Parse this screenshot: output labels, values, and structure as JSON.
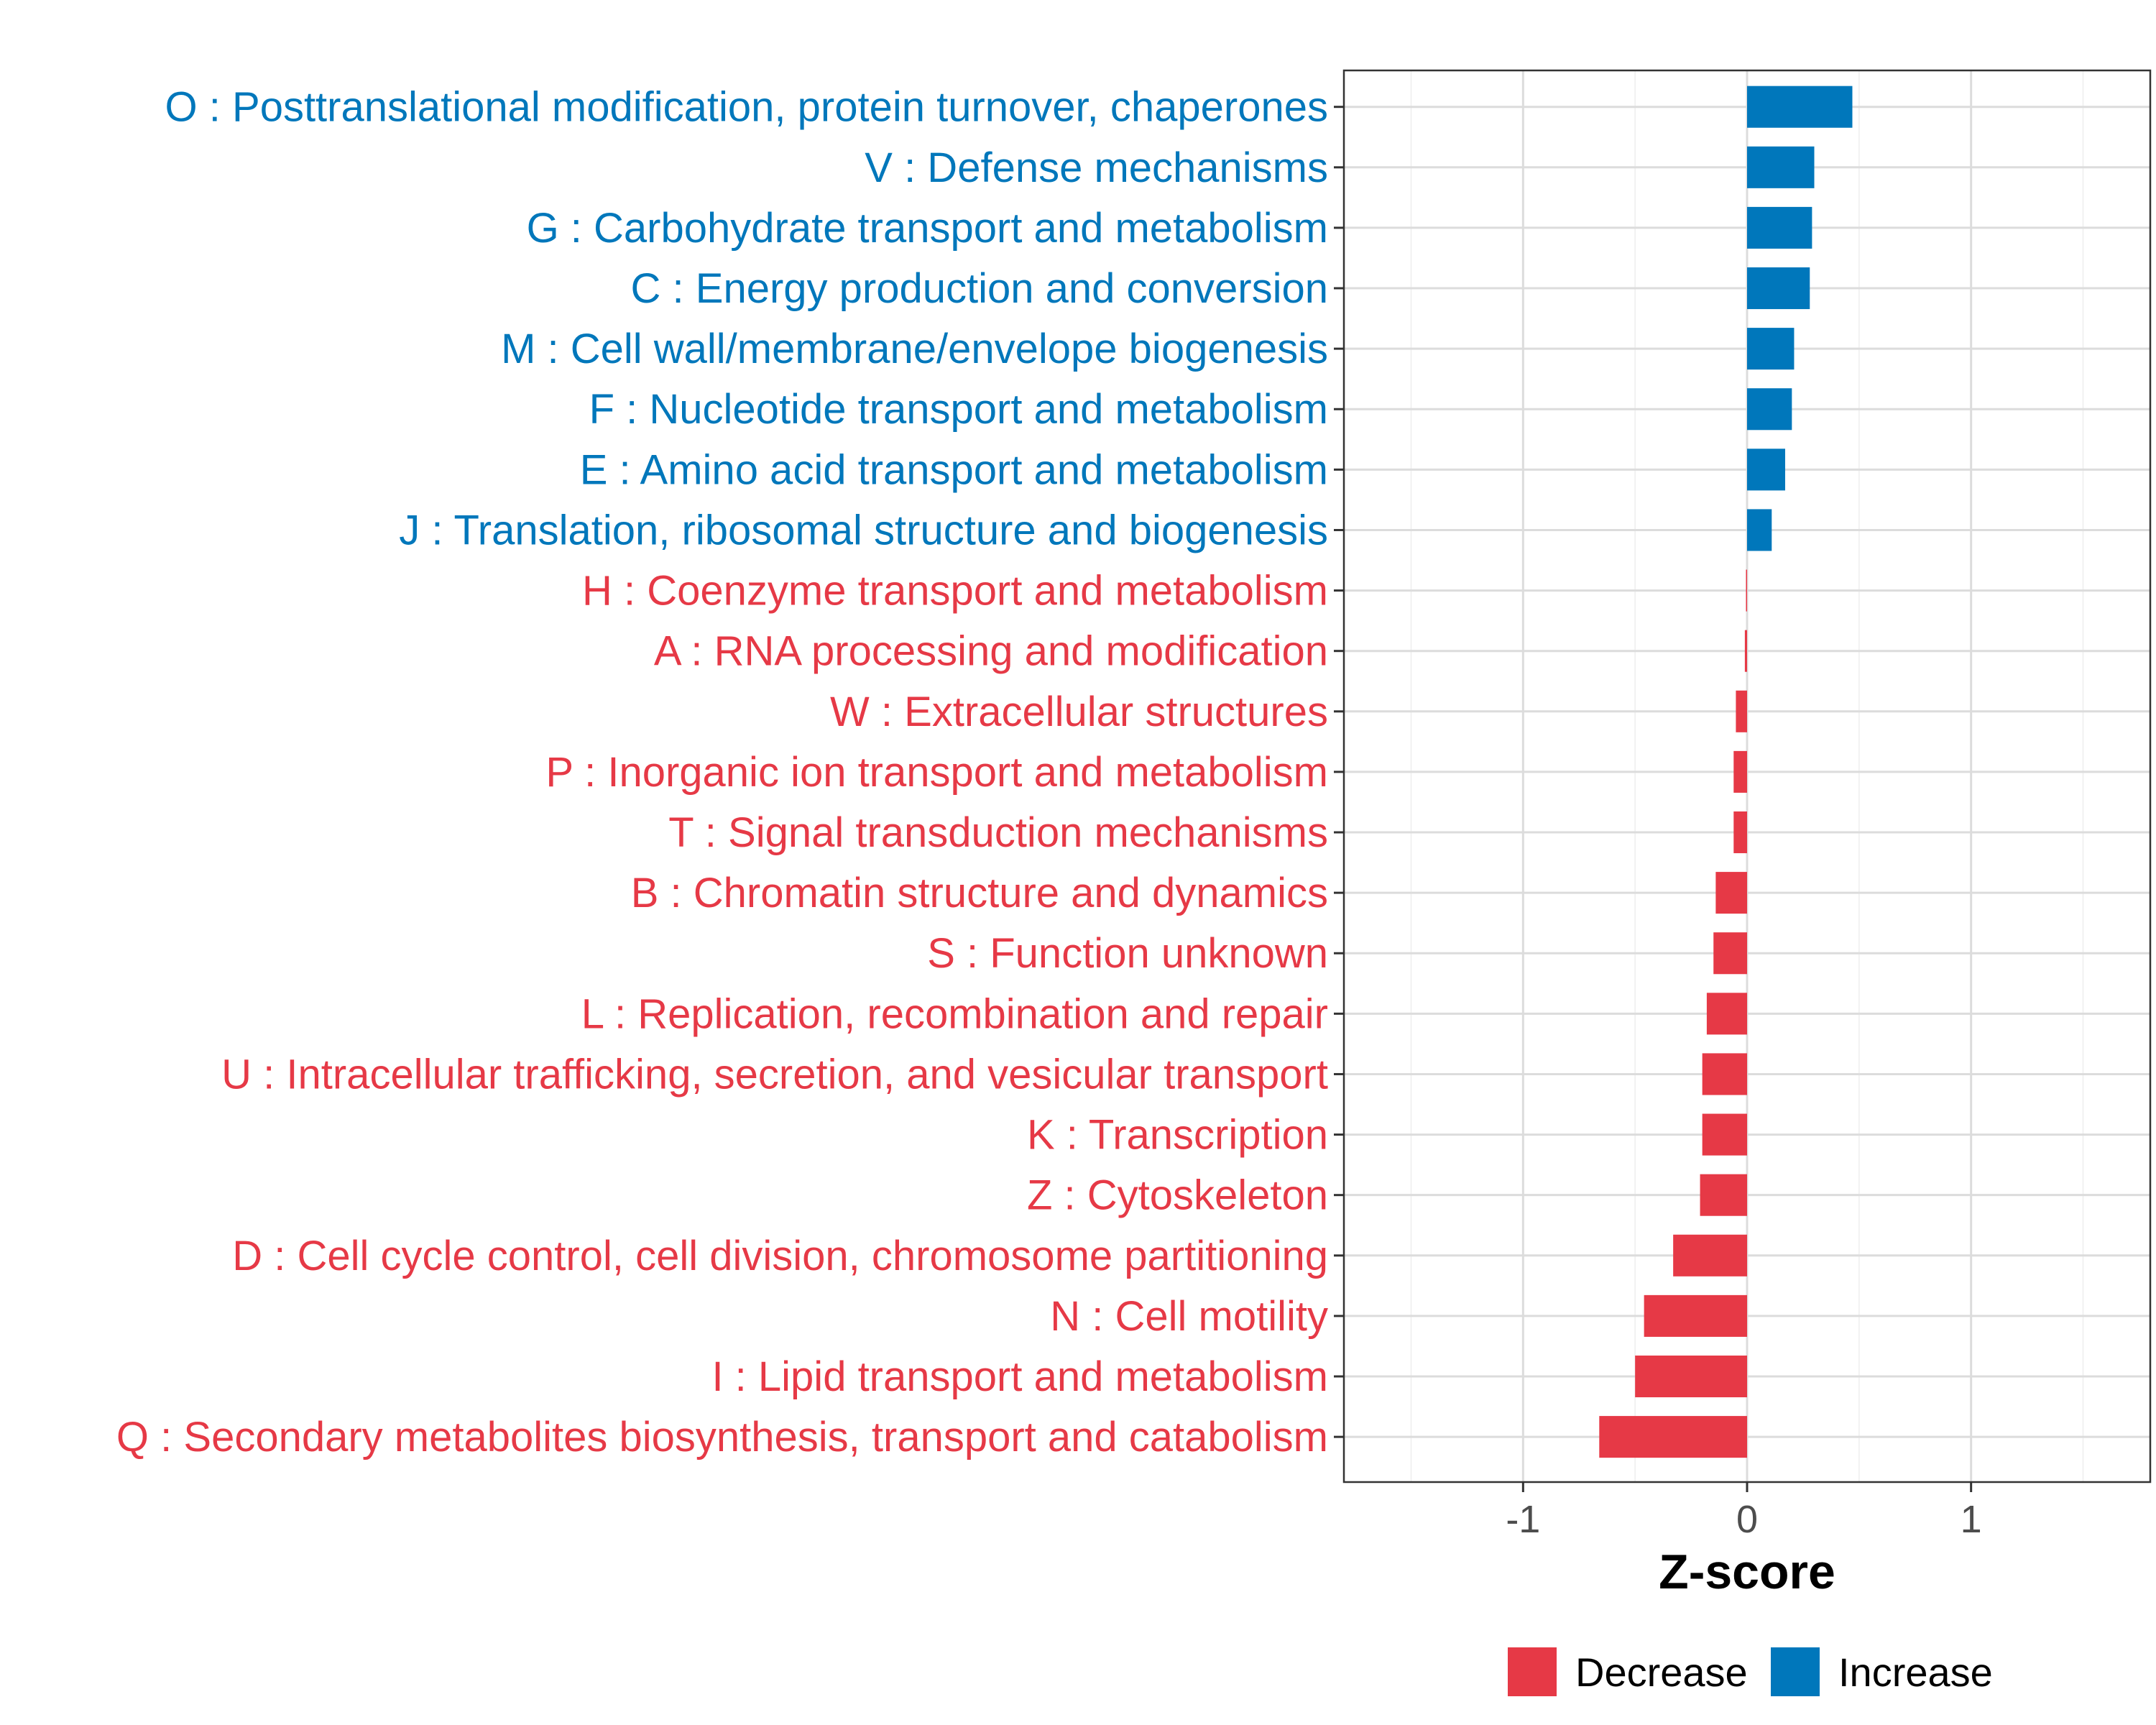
{
  "chart_data": {
    "type": "bar",
    "orientation": "horizontal",
    "title": "",
    "xlabel": "Z-score",
    "ylabel": "",
    "xlim": [
      -1.8,
      1.8
    ],
    "xticks": [
      -1,
      0,
      1
    ],
    "xtick_labels": [
      "-1",
      "0",
      "1"
    ],
    "grid": true,
    "colors": {
      "Decrease": "#E63946",
      "Increase": "#0077BB"
    },
    "legend": {
      "position": "bottom",
      "entries": [
        "Decrease",
        "Increase"
      ]
    },
    "categories": [
      "O : Posttranslational modification, protein turnover, chaperones",
      "V : Defense mechanisms",
      "G : Carbohydrate transport and metabolism",
      "C : Energy production and conversion",
      "M : Cell wall/membrane/envelope biogenesis",
      "F : Nucleotide transport and metabolism",
      "E : Amino acid transport and metabolism",
      "J : Translation, ribosomal structure and biogenesis",
      "H : Coenzyme transport and metabolism",
      "A : RNA processing and modification",
      "W : Extracellular structures",
      "P : Inorganic ion transport and metabolism",
      "T : Signal transduction mechanisms",
      "B : Chromatin structure and dynamics",
      "S : Function unknown",
      "L : Replication, recombination and repair",
      "U : Intracellular trafficking, secretion, and vesicular transport",
      "K : Transcription",
      "Z : Cytoskeleton",
      "D : Cell cycle control, cell division, chromosome partitioning",
      "N : Cell motility",
      "I : Lipid transport and metabolism",
      "Q : Secondary metabolites biosynthesis, transport and catabolism"
    ],
    "values": [
      0.47,
      0.3,
      0.29,
      0.28,
      0.21,
      0.2,
      0.17,
      0.11,
      -0.005,
      -0.01,
      -0.05,
      -0.06,
      -0.06,
      -0.14,
      -0.15,
      -0.18,
      -0.2,
      -0.2,
      -0.21,
      -0.33,
      -0.46,
      -0.5,
      -0.66
    ],
    "groups": [
      "Increase",
      "Increase",
      "Increase",
      "Increase",
      "Increase",
      "Increase",
      "Increase",
      "Increase",
      "Decrease",
      "Decrease",
      "Decrease",
      "Decrease",
      "Decrease",
      "Decrease",
      "Decrease",
      "Decrease",
      "Decrease",
      "Decrease",
      "Decrease",
      "Decrease",
      "Decrease",
      "Decrease",
      "Decrease"
    ]
  }
}
